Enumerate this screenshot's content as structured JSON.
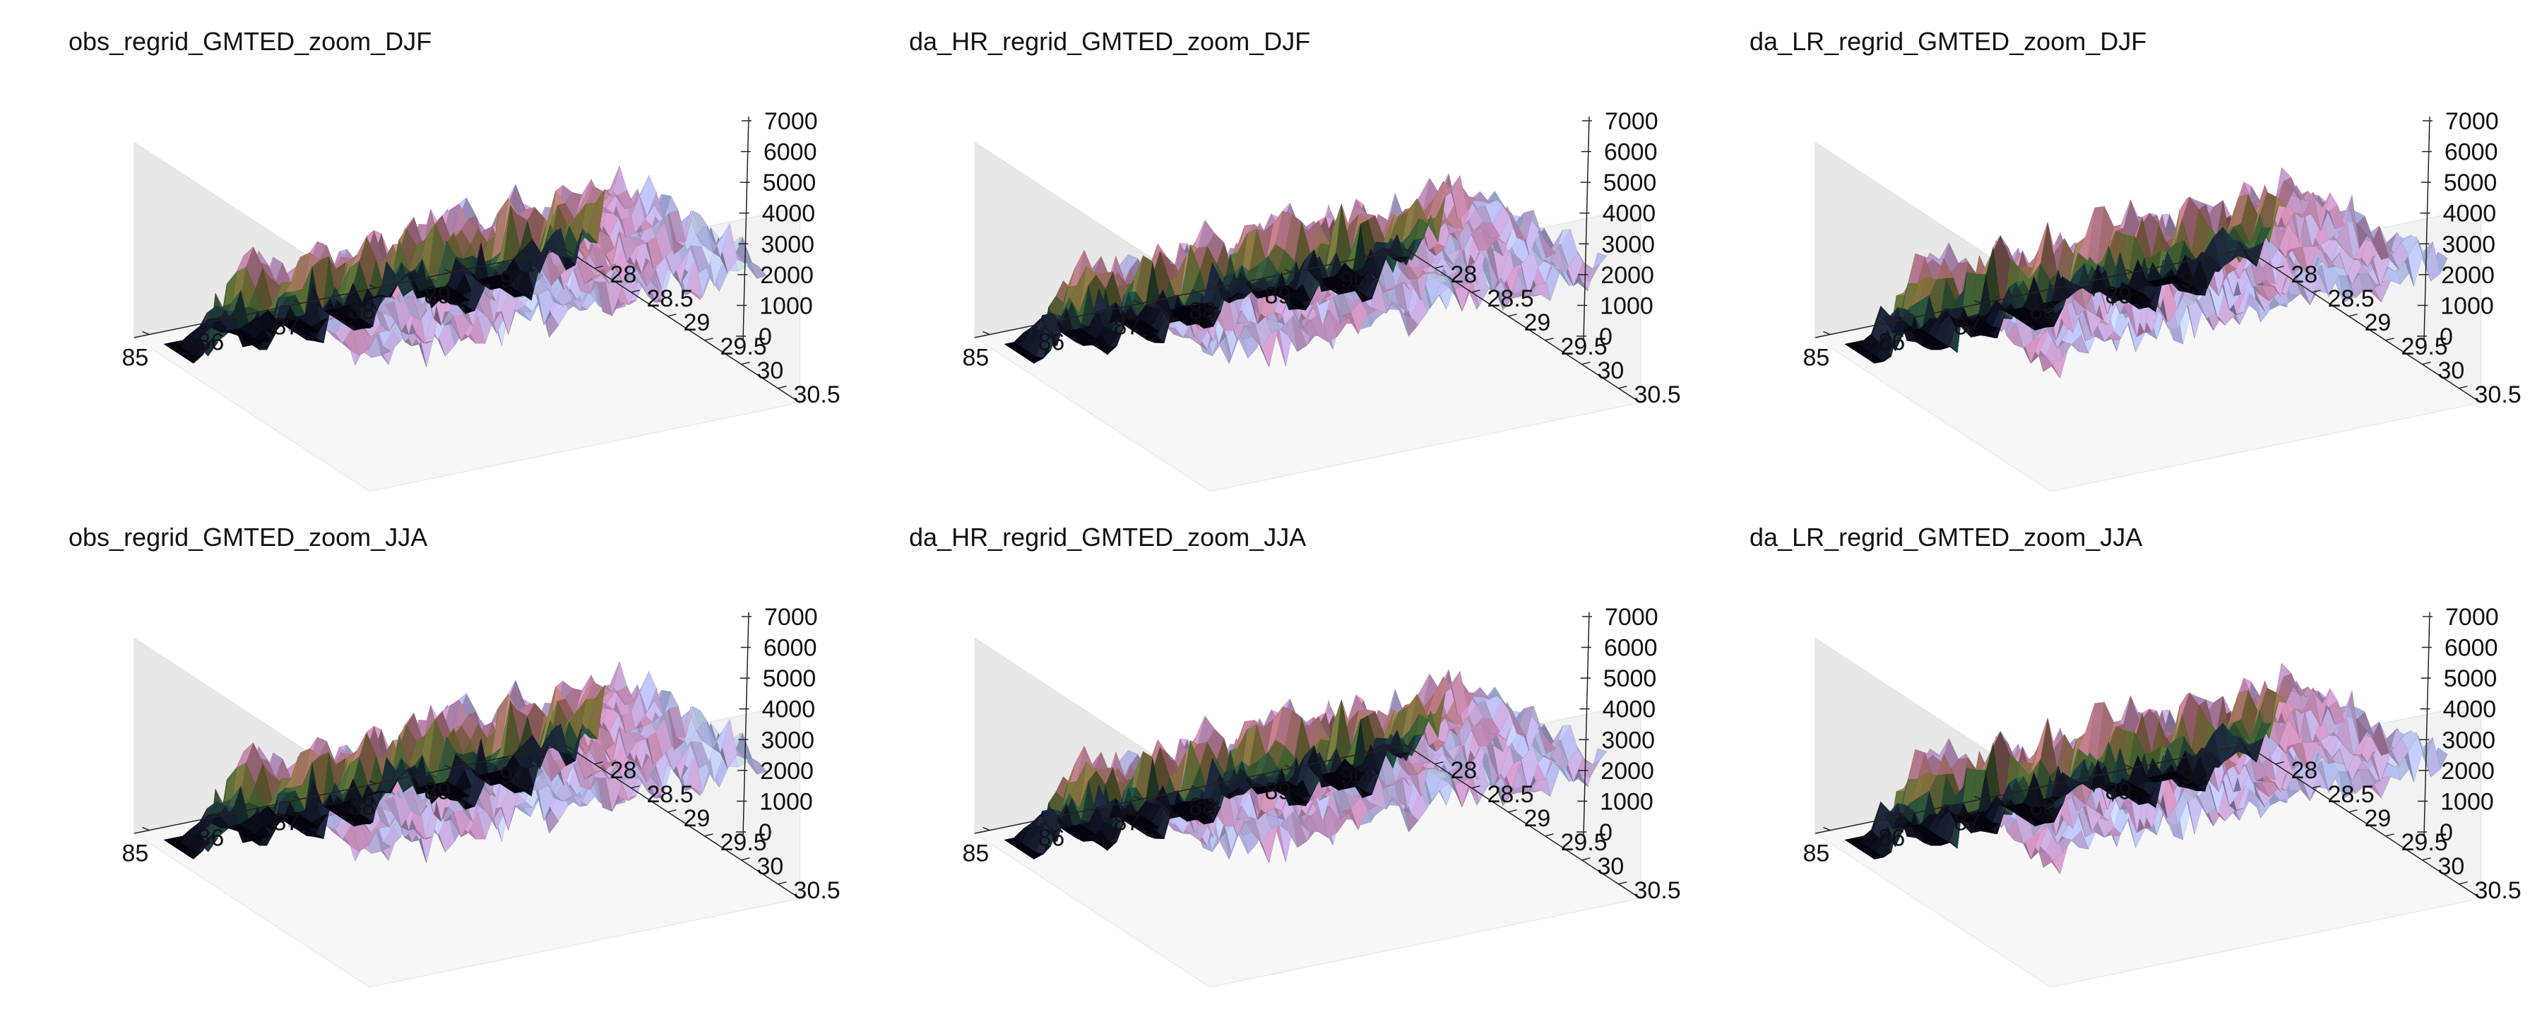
{
  "figure": {
    "colormap": [
      "#05030d",
      "#1b2438",
      "#1f4a3d",
      "#4f6a33",
      "#86703f",
      "#b3737a",
      "#c08bb8",
      "#a9b0de",
      "#cfe3e6",
      "#ffffff"
    ],
    "pane_colors": {
      "back": "#f2f2f2",
      "side": "#e8e8e8",
      "floor": "#f7f7f7"
    }
  },
  "chart_data": [
    {
      "type": "surface3d",
      "title": "obs_regrid_GMTED_zoom_DJF",
      "season": "DJF",
      "source": "obs",
      "x_ticks": [
        "85",
        "86",
        "87",
        "88",
        "89",
        "90"
      ],
      "y_ticks": [
        "28",
        "28.5",
        "29",
        "29.5",
        "30",
        "30.5"
      ],
      "z_ticks": [
        "0",
        "1000",
        "2000",
        "3000",
        "4000",
        "5000",
        "6000",
        "7000"
      ],
      "xlim": [
        84.8,
        90.5
      ],
      "ylim": [
        27.6,
        30.8
      ],
      "zlim": [
        0,
        7000
      ],
      "color_range": [
        0,
        6000
      ]
    },
    {
      "type": "surface3d",
      "title": "da_HR_regrid_GMTED_zoom_DJF",
      "season": "DJF",
      "source": "hr",
      "x_ticks": [
        "85",
        "86",
        "87",
        "88",
        "89",
        "90"
      ],
      "y_ticks": [
        "28",
        "28.5",
        "29",
        "29.5",
        "30",
        "30.5"
      ],
      "z_ticks": [
        "0",
        "1000",
        "2000",
        "3000",
        "4000",
        "5000",
        "6000",
        "7000"
      ],
      "xlim": [
        84.8,
        90.5
      ],
      "ylim": [
        27.6,
        30.8
      ],
      "zlim": [
        0,
        7000
      ],
      "color_range": [
        0,
        6000
      ]
    },
    {
      "type": "surface3d",
      "title": "da_LR_regrid_GMTED_zoom_DJF",
      "season": "DJF",
      "source": "lr",
      "x_ticks": [
        "85",
        "86",
        "87",
        "88",
        "89",
        "90"
      ],
      "y_ticks": [
        "28",
        "28.5",
        "29",
        "29.5",
        "30",
        "30.5"
      ],
      "z_ticks": [
        "0",
        "1000",
        "2000",
        "3000",
        "4000",
        "5000",
        "6000",
        "7000"
      ],
      "xlim": [
        84.8,
        90.5
      ],
      "ylim": [
        27.6,
        30.8
      ],
      "zlim": [
        0,
        7000
      ],
      "color_range": [
        0,
        6000
      ]
    },
    {
      "type": "surface3d",
      "title": "obs_regrid_GMTED_zoom_JJA",
      "season": "JJA",
      "source": "obs",
      "x_ticks": [
        "85",
        "86",
        "87",
        "88",
        "89",
        "90"
      ],
      "y_ticks": [
        "28",
        "28.5",
        "29",
        "29.5",
        "30",
        "30.5"
      ],
      "z_ticks": [
        "0",
        "1000",
        "2000",
        "3000",
        "4000",
        "5000",
        "6000",
        "7000"
      ],
      "xlim": [
        84.8,
        90.5
      ],
      "ylim": [
        27.6,
        30.8
      ],
      "zlim": [
        0,
        7000
      ],
      "color_range": [
        0,
        6000
      ]
    },
    {
      "type": "surface3d",
      "title": "da_HR_regrid_GMTED_zoom_JJA",
      "season": "JJA",
      "source": "hr",
      "x_ticks": [
        "85",
        "86",
        "87",
        "88",
        "89",
        "90"
      ],
      "y_ticks": [
        "28",
        "28.5",
        "29",
        "29.5",
        "30",
        "30.5"
      ],
      "z_ticks": [
        "0",
        "1000",
        "2000",
        "3000",
        "4000",
        "5000",
        "6000",
        "7000"
      ],
      "xlim": [
        84.8,
        90.5
      ],
      "ylim": [
        27.6,
        30.8
      ],
      "zlim": [
        0,
        7000
      ],
      "color_range": [
        0,
        6000
      ]
    },
    {
      "type": "surface3d",
      "title": "da_LR_regrid_GMTED_zoom_JJA",
      "season": "JJA",
      "source": "lr",
      "x_ticks": [
        "85",
        "86",
        "87",
        "88",
        "89",
        "90"
      ],
      "y_ticks": [
        "28",
        "28.5",
        "29",
        "29.5",
        "30",
        "30.5"
      ],
      "z_ticks": [
        "0",
        "1000",
        "2000",
        "3000",
        "4000",
        "5000",
        "6000",
        "7000"
      ],
      "xlim": [
        84.8,
        90.5
      ],
      "ylim": [
        27.6,
        30.8
      ],
      "zlim": [
        0,
        7000
      ],
      "color_range": [
        0,
        6000
      ]
    }
  ]
}
